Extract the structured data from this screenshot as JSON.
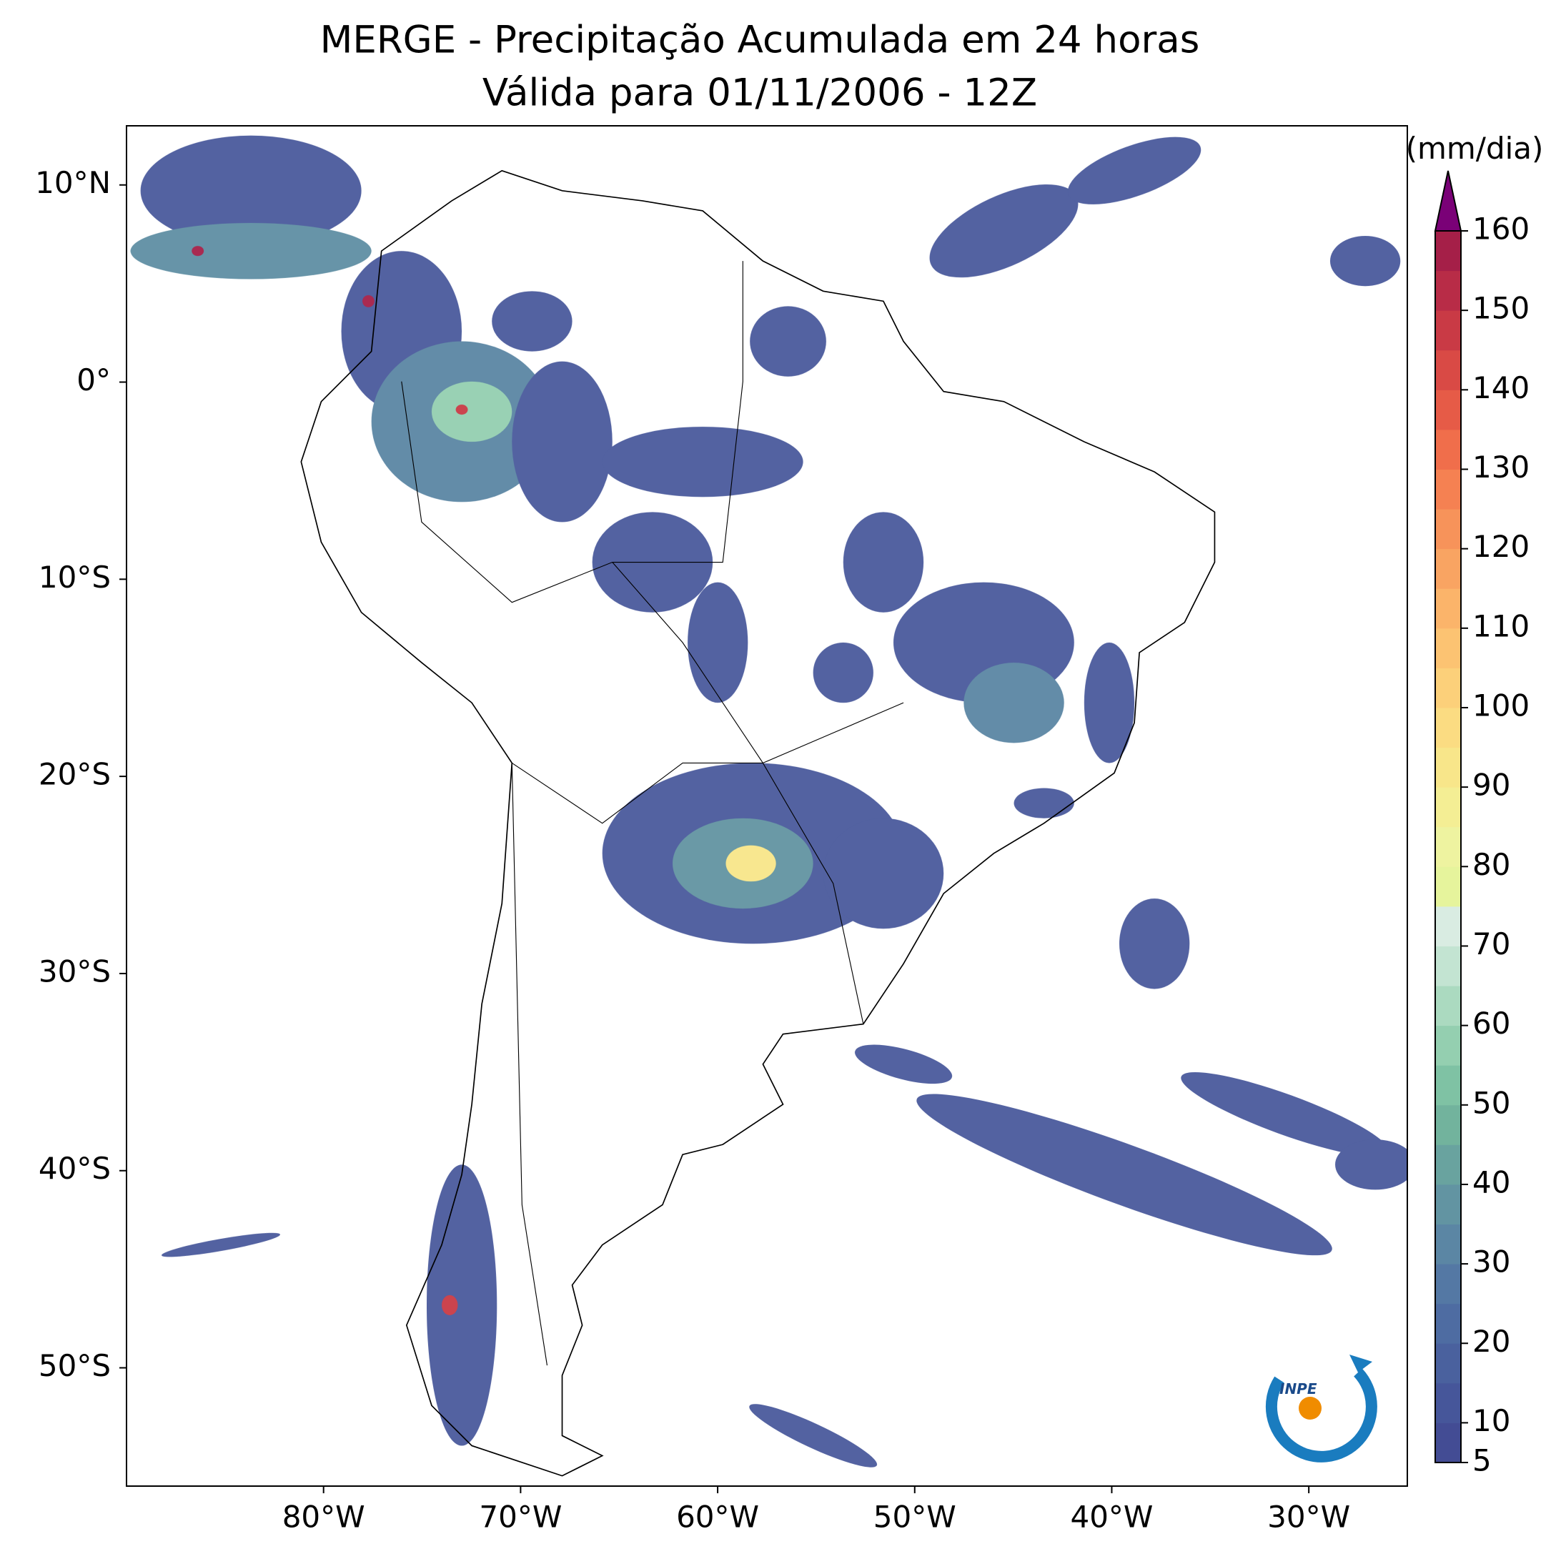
{
  "chart_data": {
    "type": "map",
    "title": "MERGE - Precipitação Acumulada em 24 horas",
    "subtitle": "Válida para 01/11/2006 - 12Z",
    "xlim": [
      -90,
      -25
    ],
    "ylim": [
      -56,
      13
    ],
    "xticks": [
      {
        "value": -80,
        "label": "80°W"
      },
      {
        "value": -70,
        "label": "70°W"
      },
      {
        "value": -60,
        "label": "60°W"
      },
      {
        "value": -50,
        "label": "50°W"
      },
      {
        "value": -40,
        "label": "40°W"
      },
      {
        "value": -30,
        "label": "30°W"
      }
    ],
    "yticks": [
      {
        "value": 10,
        "label": "10°N"
      },
      {
        "value": 0,
        "label": "0°"
      },
      {
        "value": -10,
        "label": "10°S"
      },
      {
        "value": -20,
        "label": "20°S"
      },
      {
        "value": -30,
        "label": "30°S"
      },
      {
        "value": -40,
        "label": "40°S"
      },
      {
        "value": -50,
        "label": "50°S"
      }
    ],
    "colorbar": {
      "label": "(mm/dia)",
      "lim": [
        5,
        160
      ],
      "levels": [
        5,
        10,
        15,
        20,
        25,
        30,
        35,
        40,
        45,
        50,
        55,
        60,
        65,
        70,
        75,
        80,
        85,
        90,
        95,
        100,
        105,
        110,
        115,
        120,
        125,
        130,
        135,
        140,
        145,
        150,
        155,
        160
      ],
      "colors": [
        "#434c94",
        "#46569a",
        "#4a619e",
        "#4e6ca2",
        "#5478a4",
        "#5b86a4",
        "#6294a2",
        "#69a39f",
        "#72b39d",
        "#7fc2a4",
        "#94cfb0",
        "#abdac0",
        "#c3e4d2",
        "#d9ece2",
        "#e6f49c",
        "#eef3a0",
        "#f4ee94",
        "#f8e68a",
        "#fbdc82",
        "#fcd07a",
        "#fcc372",
        "#fbb46a",
        "#f9a462",
        "#f7935a",
        "#f58152",
        "#f06e4b",
        "#e65b47",
        "#d94a45",
        "#c93a45",
        "#b82c47",
        "#a51f48"
      ],
      "extend_color": "#7a0177",
      "ticks": [
        5,
        10,
        20,
        30,
        40,
        50,
        60,
        70,
        80,
        90,
        100,
        110,
        120,
        130,
        140,
        150,
        160
      ]
    },
    "logo": "INPE"
  }
}
